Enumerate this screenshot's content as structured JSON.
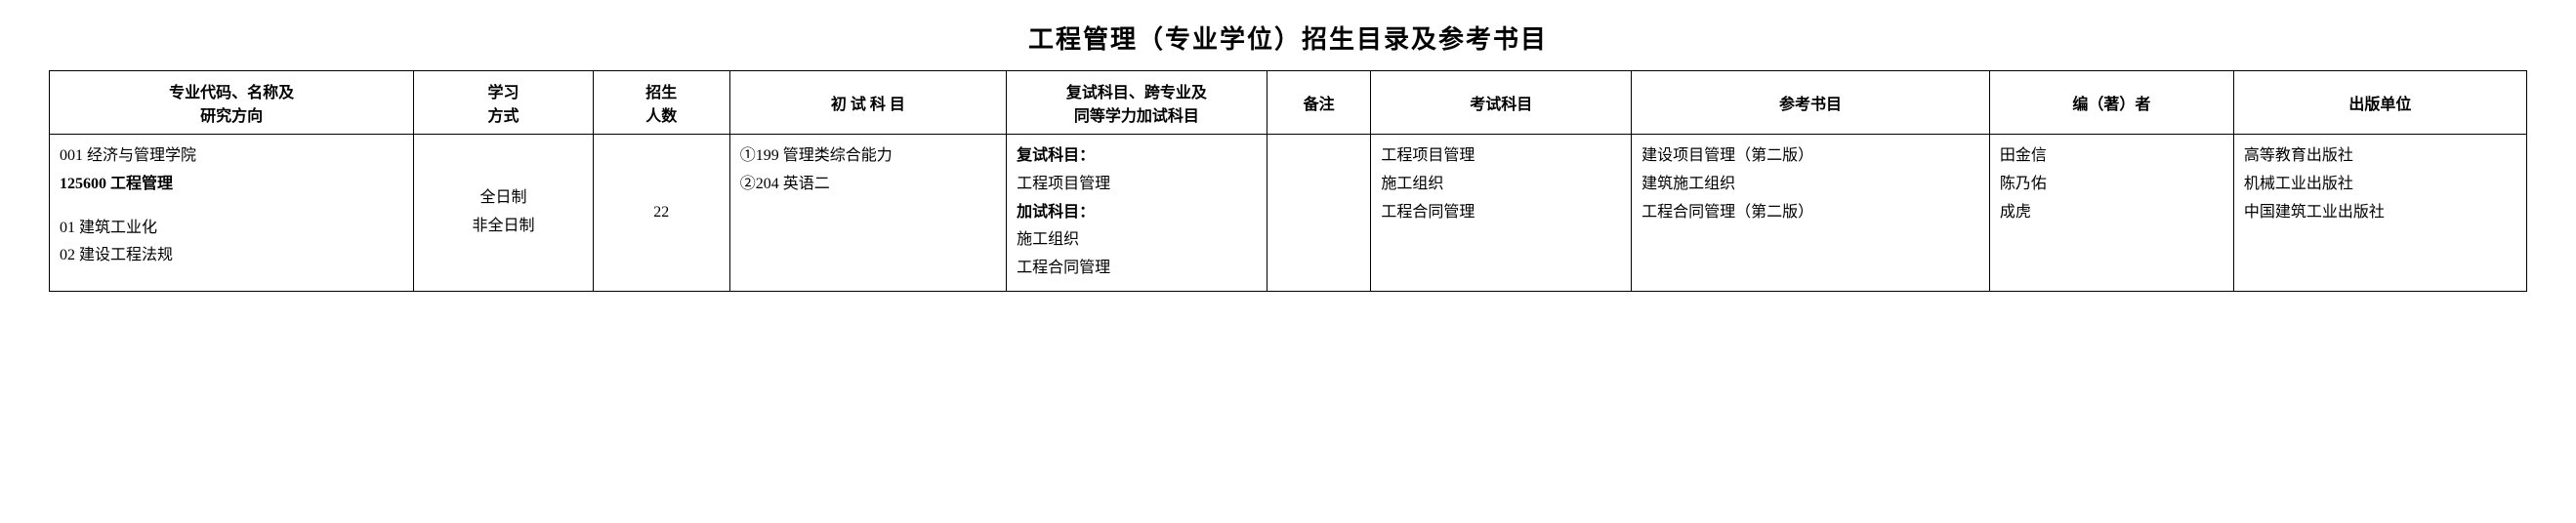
{
  "title": "工程管理（专业学位）招生目录及参考书目",
  "headers": {
    "major": "专业代码、名称及\n研究方向",
    "mode": "学习\n方式",
    "count": "招生\n人数",
    "prelim": "初 试 科 目",
    "retest": "复试科目、跨专业及\n同等学力加试科目",
    "remark": "备注",
    "subject": "考试科目",
    "book": "参考书目",
    "author": "编（著）者",
    "publisher": "出版单位"
  },
  "row": {
    "major": {
      "dept": "001 经济与管理学院",
      "prog": "125600 工程管理",
      "dir1": "01 建筑工业化",
      "dir2": "02 建设工程法规"
    },
    "mode": {
      "l1": "全日制",
      "l2": "非全日制"
    },
    "count": "22",
    "prelim": {
      "l1": "①199 管理类综合能力",
      "l2": "②204 英语二"
    },
    "retest": {
      "h1": "复试科目：",
      "l1": "工程项目管理",
      "h2": "加试科目：",
      "l2": "施工组织",
      "l3": "工程合同管理"
    },
    "remark": "",
    "subject": {
      "l1": "工程项目管理",
      "l2": "施工组织",
      "l3": "工程合同管理"
    },
    "book": {
      "l1": "建设项目管理（第二版）",
      "l2": "建筑施工组织",
      "l3": "工程合同管理（第二版）"
    },
    "author": {
      "l1": "田金信",
      "l2": "陈乃佑",
      "l3": "成虎"
    },
    "publisher": {
      "l1": "高等教育出版社",
      "l2": "机械工业出版社",
      "l3": "中国建筑工业出版社"
    }
  }
}
